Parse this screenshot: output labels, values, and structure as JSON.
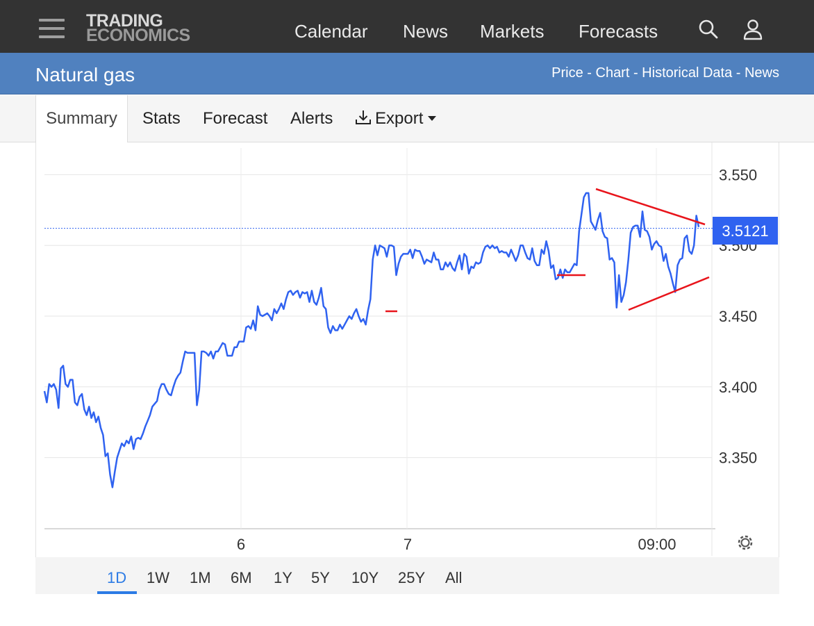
{
  "header": {
    "logo_line1": "TRADING",
    "logo_line2": "ECONOMICS",
    "nav": [
      "Calendar",
      "News",
      "Markets",
      "Forecasts"
    ],
    "icons": [
      "menu-icon",
      "search-icon",
      "user-icon"
    ]
  },
  "subheader": {
    "title": "Natural gas",
    "links": "Price - Chart - Historical Data - News"
  },
  "tabs": [
    "Summary",
    "Stats",
    "Forecast",
    "Alerts",
    "Export"
  ],
  "active_tab": "Summary",
  "ranges": [
    "1D",
    "1W",
    "1M",
    "6M",
    "1Y",
    "5Y",
    "10Y",
    "25Y",
    "All"
  ],
  "active_range": "1D",
  "colors": {
    "series": "#2f62f0",
    "trendline": "#e8141b",
    "accent": "#2c7be5",
    "price_tag": "#2f62f0"
  },
  "chart_data": {
    "type": "line",
    "y_tick_labels": [
      "3.550",
      "3.500",
      "3.450",
      "3.400",
      "3.350"
    ],
    "y_ticks": [
      3.55,
      3.5,
      3.45,
      3.4,
      3.35
    ],
    "x_tick_labels": [
      "6",
      "7",
      "09:00"
    ],
    "ylim": [
      3.3,
      3.575
    ],
    "last_price": 3.5121,
    "last_price_label": "3.5121",
    "values": [
      3.397,
      3.389,
      3.402,
      3.4,
      3.402,
      3.398,
      3.385,
      3.413,
      3.415,
      3.402,
      3.4,
      3.405,
      3.405,
      3.389,
      3.387,
      3.393,
      3.395,
      3.384,
      3.38,
      3.386,
      3.378,
      3.382,
      3.375,
      3.379,
      3.371,
      3.366,
      3.351,
      3.353,
      3.338,
      3.329,
      3.34,
      3.35,
      3.355,
      3.36,
      3.358,
      3.362,
      3.36,
      3.365,
      3.356,
      3.363,
      3.364,
      3.363,
      3.367,
      3.372,
      3.376,
      3.38,
      3.386,
      3.388,
      3.39,
      3.398,
      3.402,
      3.402,
      3.398,
      3.395,
      3.394,
      3.4,
      3.405,
      3.408,
      3.41,
      3.418,
      3.425,
      3.424,
      3.424,
      3.424,
      3.424,
      3.387,
      3.398,
      3.425,
      3.425,
      3.424,
      3.422,
      3.425,
      3.42,
      3.425,
      3.425,
      3.428,
      3.431,
      3.43,
      3.422,
      3.422,
      3.422,
      3.428,
      3.428,
      3.432,
      3.432,
      3.432,
      3.442,
      3.443,
      3.441,
      3.447,
      3.44,
      3.457,
      3.451,
      3.45,
      3.451,
      3.452,
      3.45,
      3.447,
      3.455,
      3.452,
      3.455,
      3.459,
      3.455,
      3.462,
      3.467,
      3.468,
      3.465,
      3.467,
      3.468,
      3.463,
      3.467,
      3.466,
      3.467,
      3.46,
      3.468,
      3.46,
      3.458,
      3.463,
      3.47,
      3.457,
      3.455,
      3.442,
      3.438,
      3.443,
      3.44,
      3.44,
      3.444,
      3.441,
      3.444,
      3.447,
      3.45,
      3.448,
      3.452,
      3.455,
      3.45,
      3.446,
      3.448,
      3.444,
      3.454,
      3.462,
      3.49,
      3.5,
      3.493,
      3.5,
      3.499,
      3.498,
      3.492,
      3.5,
      3.5,
      3.499,
      3.479,
      3.487,
      3.492,
      3.494,
      3.494,
      3.494,
      3.497,
      3.491,
      3.497,
      3.496,
      3.496,
      3.492,
      3.487,
      3.49,
      3.489,
      3.488,
      3.495,
      3.49,
      3.49,
      3.483,
      3.483,
      3.488,
      3.485,
      3.488,
      3.484,
      3.482,
      3.488,
      3.493,
      3.483,
      3.494,
      3.492,
      3.48,
      3.485,
      3.484,
      3.488,
      3.487,
      3.488,
      3.495,
      3.499,
      3.5,
      3.498,
      3.5,
      3.498,
      3.499,
      3.495,
      3.496,
      3.495,
      3.495,
      3.492,
      3.497,
      3.493,
      3.489,
      3.493,
      3.5,
      3.5,
      3.495,
      3.491,
      3.49,
      3.498,
      3.489,
      3.486,
      3.486,
      3.497,
      3.494,
      3.503,
      3.496,
      3.484,
      3.486,
      3.476,
      3.477,
      3.483,
      3.477,
      3.483,
      3.481,
      3.481,
      3.484,
      3.487,
      3.486,
      3.51,
      3.522,
      3.534,
      3.537,
      3.537,
      3.517,
      3.514,
      3.511,
      3.518,
      3.523,
      3.51,
      3.506,
      3.505,
      3.49,
      3.491,
      3.488,
      3.456,
      3.479,
      3.46,
      3.465,
      3.474,
      3.49,
      3.509,
      3.513,
      3.514,
      3.514,
      3.506,
      3.524,
      3.511,
      3.51,
      3.506,
      3.497,
      3.501,
      3.503,
      3.5,
      3.499,
      3.489,
      3.494,
      3.485,
      3.48,
      3.473,
      3.467,
      3.486,
      3.49,
      3.491,
      3.505,
      3.507,
      3.496,
      3.494,
      3.5,
      3.521,
      3.513
    ]
  }
}
